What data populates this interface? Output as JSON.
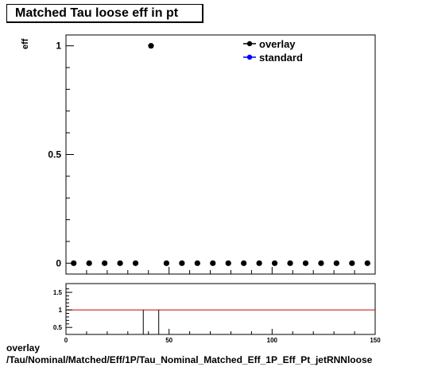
{
  "title": "Matched Tau loose eff in pt",
  "footer": {
    "line1": "overlay",
    "line2": "/Tau/Nominal/Matched/Eff/1P/Tau_Nominal_Matched_Eff_1P_Eff_Pt_jetRNNloose"
  },
  "colors": {
    "overlay": "#000000",
    "standard": "#0000ff",
    "ratio_line": "#cc0000"
  },
  "chart_data": [
    {
      "type": "scatter",
      "title": "Matched Tau loose eff in pt",
      "ylabel": "eff",
      "xlabel": "",
      "xlim": [
        0,
        150
      ],
      "ylim": [
        -0.05,
        1.05
      ],
      "yticks": [
        0,
        0.5,
        1
      ],
      "ytick_labels": [
        "0",
        "0.5",
        "1"
      ],
      "legend": {
        "placement": "top-right",
        "entries": [
          "overlay",
          "standard"
        ]
      },
      "series": [
        {
          "name": "overlay",
          "x": [
            3.75,
            11.25,
            18.75,
            26.25,
            33.75,
            41.25,
            48.75,
            56.25,
            63.75,
            71.25,
            78.75,
            86.25,
            93.75,
            101.25,
            108.75,
            116.25,
            123.75,
            131.25,
            138.75,
            146.25
          ],
          "y": [
            0,
            0,
            0,
            0,
            0,
            1,
            0,
            0,
            0,
            0,
            0,
            0,
            0,
            0,
            0,
            0,
            0,
            0,
            0,
            0
          ]
        },
        {
          "name": "standard",
          "x": [],
          "y": []
        }
      ]
    },
    {
      "type": "line",
      "title": "",
      "xlim": [
        0,
        150
      ],
      "ylim": [
        0.3,
        1.75
      ],
      "xticks": [
        0,
        50,
        100,
        150
      ],
      "xtick_labels": [
        "0",
        "50",
        "100",
        "150"
      ],
      "yticks": [
        0.5,
        1,
        1.5
      ],
      "ytick_labels": [
        "0.5",
        "1",
        "1.5"
      ],
      "reference_line": 1,
      "spike_bin": [
        37.5,
        45
      ]
    }
  ]
}
